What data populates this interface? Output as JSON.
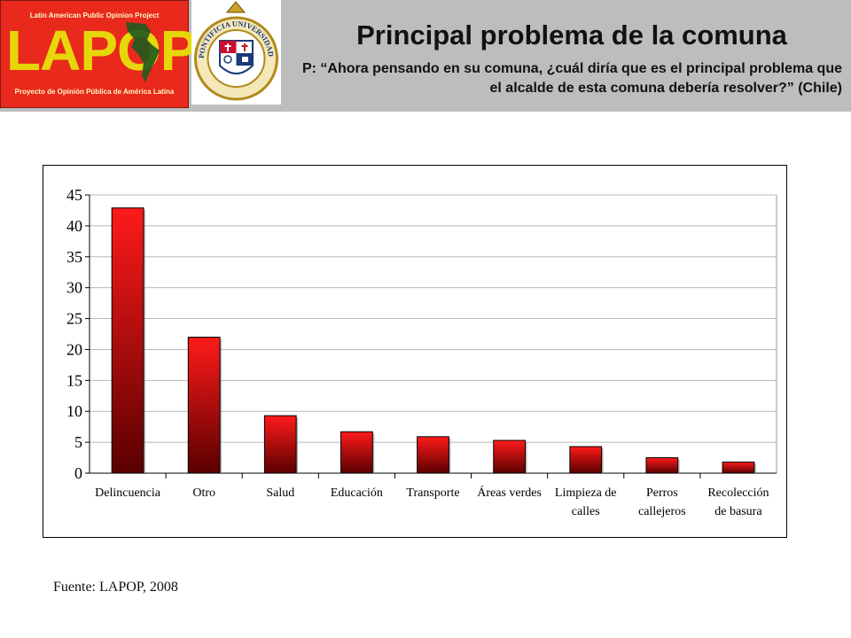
{
  "header": {
    "logo": {
      "top_text": "Latin American Public Opinion Project",
      "word": "LAPOP",
      "bottom_text": "Proyecto de Opinión Pública de América Latina"
    },
    "seal": {
      "text": "PONTIFICIA UNIVERSIDAD CATÓLICA DE CHILE"
    },
    "title": "Principal problema de la comuna",
    "subtitle": "P: “Ahora pensando en su comuna, ¿cuál diría que es el principal problema que el alcalde de esta comuna debería resolver?” (Chile)"
  },
  "colors": {
    "header_bg": "#bdbdbd",
    "logo_bg": "#e8291c",
    "logo_word": "#e6d70a",
    "bar_top": "#ff1a1a",
    "bar_bottom": "#5a0000"
  },
  "chart_data": {
    "type": "bar",
    "categories": [
      "Delincuencia",
      "Otro",
      "Salud",
      "Educación",
      "Transporte",
      "Áreas verdes",
      "Limpieza de calles",
      "Perros callejeros",
      "Recolección de basura"
    ],
    "category_lines": [
      [
        "Delincuencia"
      ],
      [
        "Otro"
      ],
      [
        "Salud"
      ],
      [
        "Educación"
      ],
      [
        "Transporte"
      ],
      [
        "Áreas verdes"
      ],
      [
        "Limpieza de",
        "calles"
      ],
      [
        "Perros",
        "callejeros"
      ],
      [
        "Recolección",
        "de basura"
      ]
    ],
    "values": [
      42.9,
      22.0,
      9.3,
      6.7,
      5.9,
      5.3,
      4.3,
      2.5,
      1.8
    ],
    "ylim": [
      0,
      45
    ],
    "yticks": [
      0,
      5,
      10,
      15,
      20,
      25,
      30,
      35,
      40,
      45
    ],
    "grid": true,
    "legend": "none",
    "title": "",
    "xlabel": "",
    "ylabel": ""
  },
  "footer": {
    "source": "Fuente: LAPOP, 2008"
  }
}
